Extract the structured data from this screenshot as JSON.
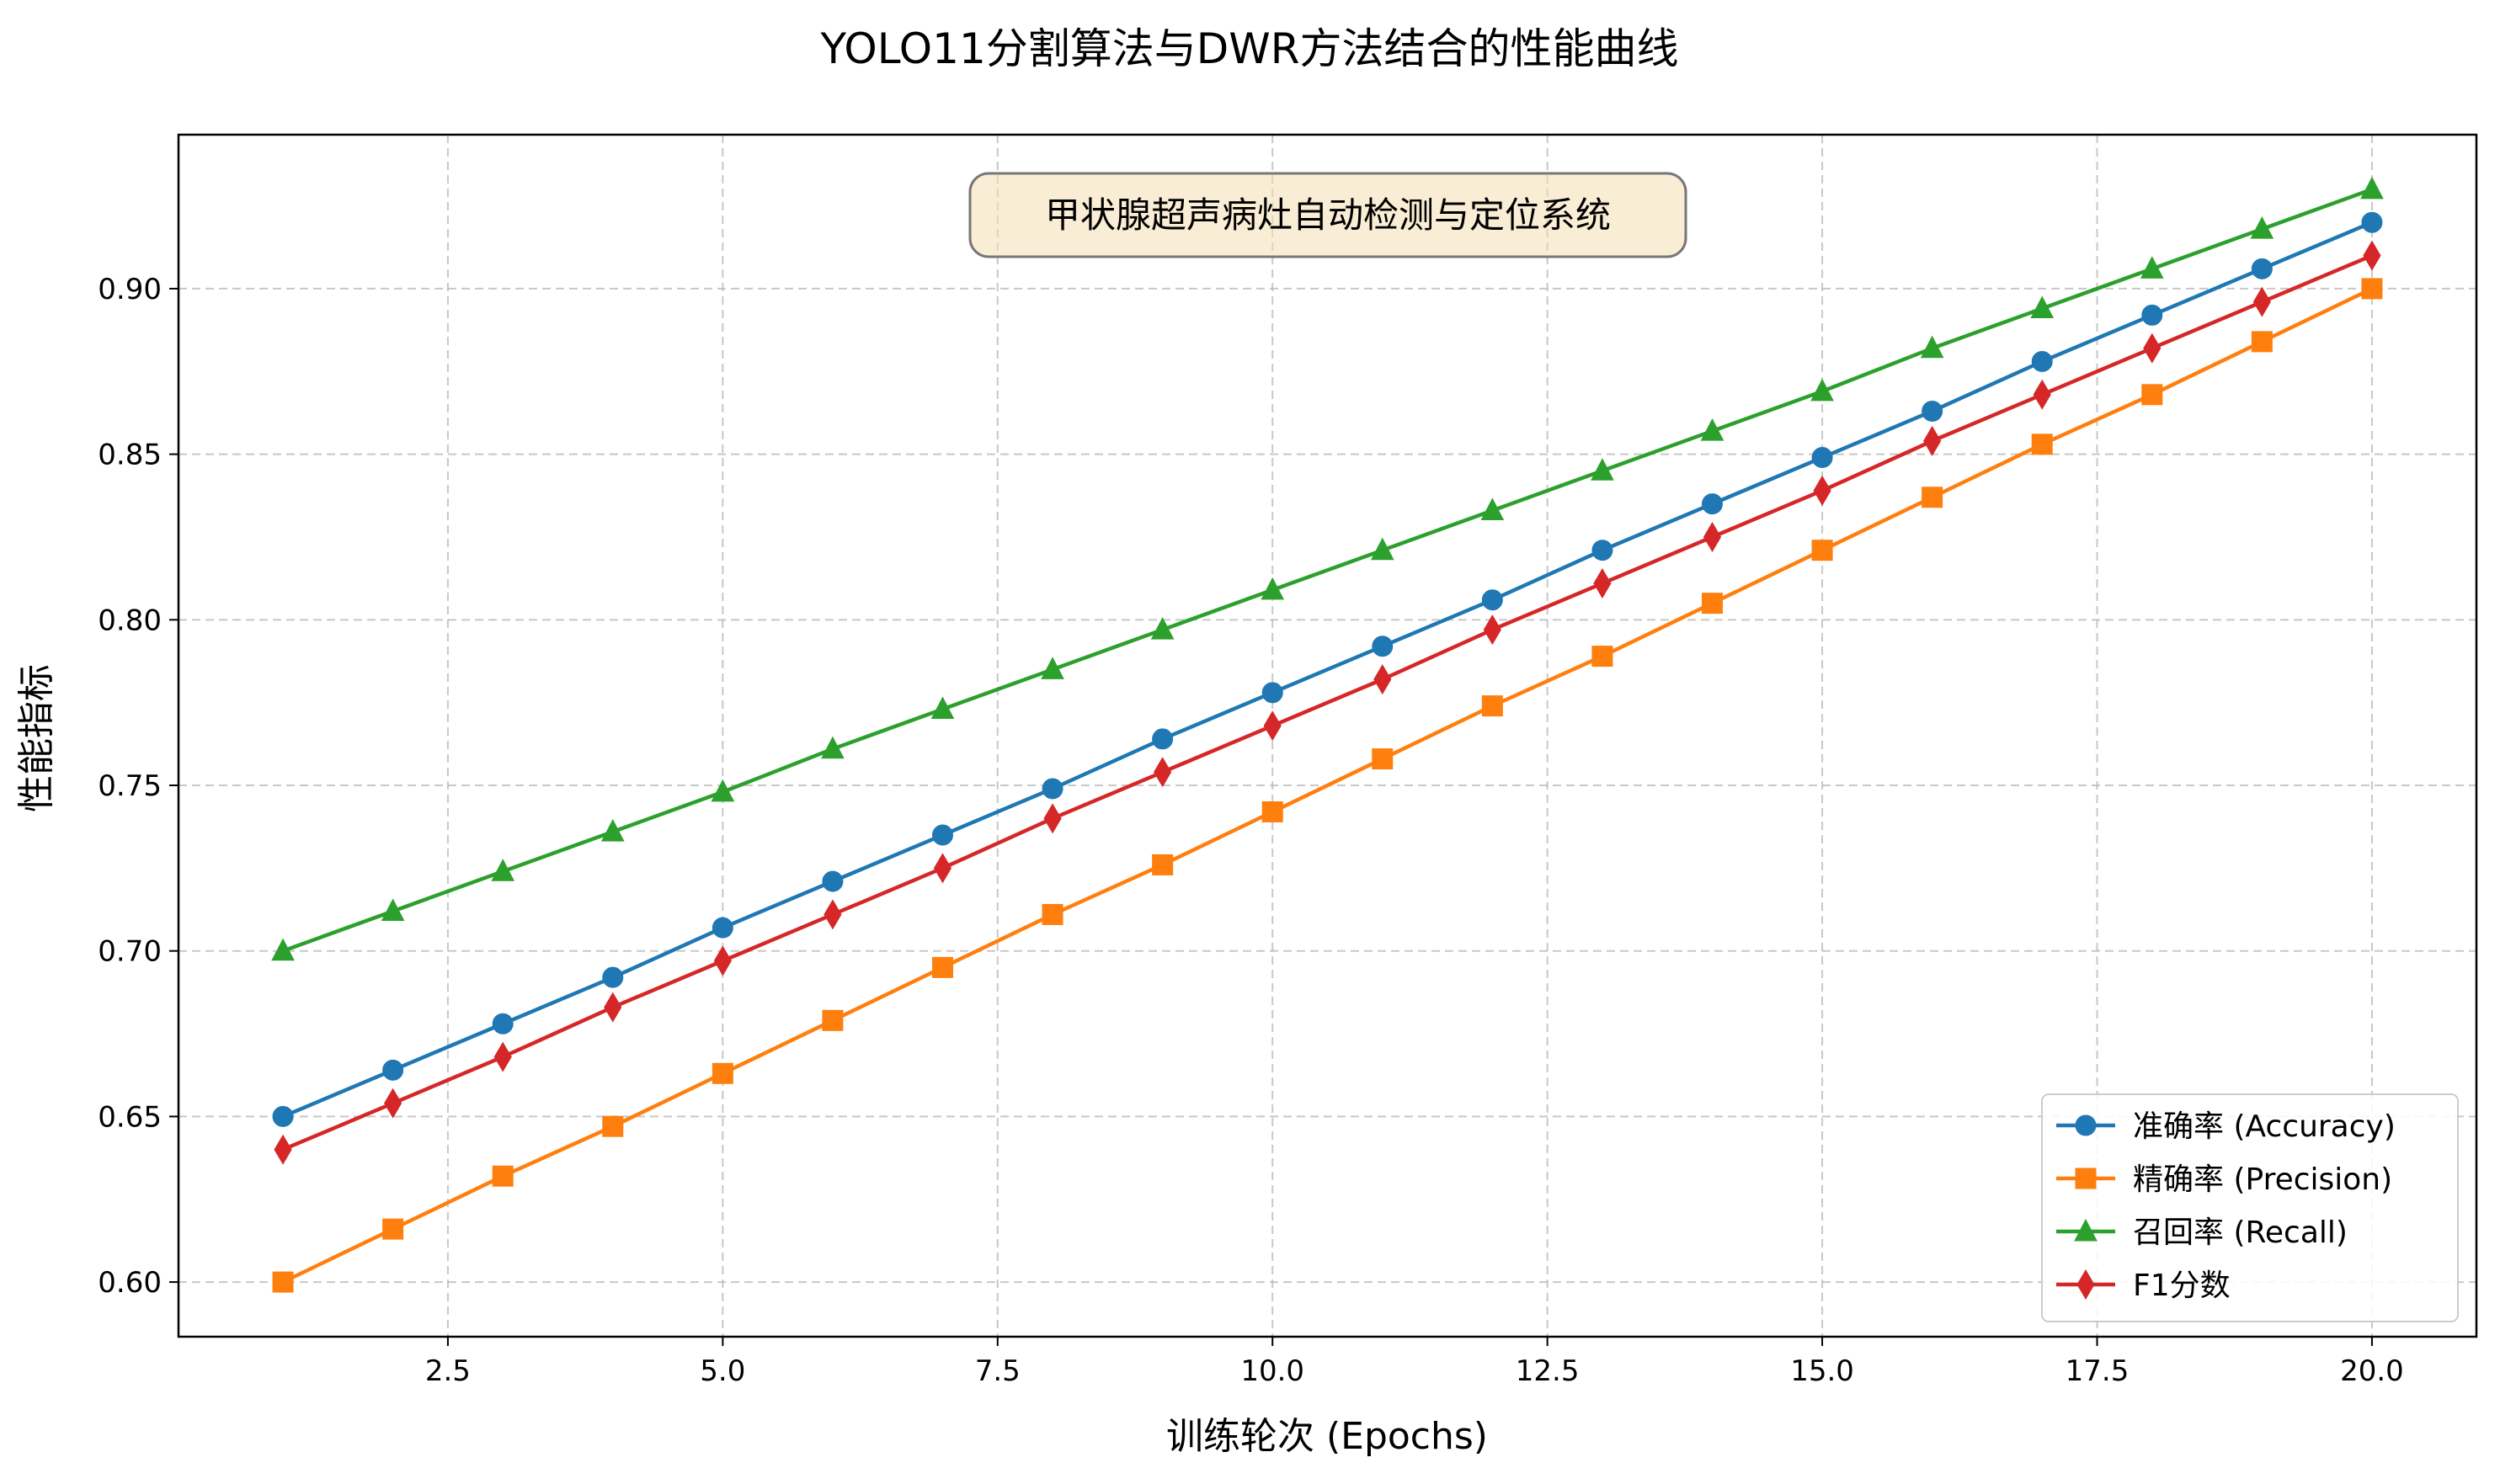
{
  "chart_data": {
    "type": "line",
    "title": "YOLO11分割算法与DWR方法结合的性能曲线",
    "xlabel": "训练轮次 (Epochs)",
    "ylabel": "性能指标",
    "xlim": [
      0.05,
      20.95
    ],
    "ylim": [
      0.5835,
      0.9465
    ],
    "xticks": [
      "2.5",
      "5.0",
      "7.5",
      "10.0",
      "12.5",
      "15.0",
      "17.5",
      "20.0"
    ],
    "xtick_values": [
      2.5,
      5.0,
      7.5,
      10.0,
      12.5,
      15.0,
      17.5,
      20.0
    ],
    "yticks": [
      "0.60",
      "0.65",
      "0.70",
      "0.75",
      "0.80",
      "0.85",
      "0.90"
    ],
    "ytick_values": [
      0.6,
      0.65,
      0.7,
      0.75,
      0.8,
      0.85,
      0.9
    ],
    "grid": true,
    "legend_position": "lower-right",
    "annotation": "甲状腺超声病灶自动检测与定位系统",
    "x": [
      1,
      2,
      3,
      4,
      5,
      6,
      7,
      8,
      9,
      10,
      11,
      12,
      13,
      14,
      15,
      16,
      17,
      18,
      19,
      20
    ],
    "series": [
      {
        "name": "准确率 (Accuracy)",
        "color": "#1f77b4",
        "marker": "circle",
        "values": [
          0.65,
          0.664,
          0.678,
          0.692,
          0.707,
          0.721,
          0.735,
          0.749,
          0.764,
          0.778,
          0.792,
          0.806,
          0.821,
          0.835,
          0.849,
          0.863,
          0.878,
          0.892,
          0.906,
          0.92
        ]
      },
      {
        "name": "精确率 (Precision)",
        "color": "#ff7f0e",
        "marker": "square",
        "values": [
          0.6,
          0.616,
          0.632,
          0.647,
          0.663,
          0.679,
          0.695,
          0.711,
          0.726,
          0.742,
          0.758,
          0.774,
          0.789,
          0.805,
          0.821,
          0.837,
          0.853,
          0.868,
          0.884,
          0.9
        ]
      },
      {
        "name": "召回率 (Recall)",
        "color": "#2ca02c",
        "marker": "triangle",
        "values": [
          0.7,
          0.712,
          0.724,
          0.736,
          0.748,
          0.761,
          0.773,
          0.785,
          0.797,
          0.809,
          0.821,
          0.833,
          0.845,
          0.857,
          0.869,
          0.882,
          0.894,
          0.906,
          0.918,
          0.93
        ]
      },
      {
        "name": "F1分数",
        "color": "#d62728",
        "marker": "diamond",
        "values": [
          0.64,
          0.654,
          0.668,
          0.683,
          0.697,
          0.711,
          0.725,
          0.74,
          0.754,
          0.768,
          0.782,
          0.797,
          0.811,
          0.825,
          0.839,
          0.854,
          0.868,
          0.882,
          0.896,
          0.91
        ]
      }
    ]
  }
}
